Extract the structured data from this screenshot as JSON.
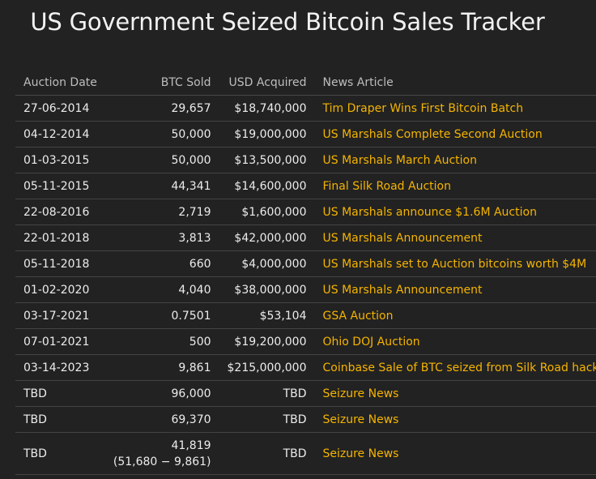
{
  "title": "US Government Seized Bitcoin Sales Tracker",
  "colors": {
    "background": "#222222",
    "link": "#f5b400",
    "text": "#ececec",
    "header_text": "#bdbdbd"
  },
  "table": {
    "headers": {
      "date": "Auction Date",
      "btc": "BTC Sold",
      "usd": "USD Acquired",
      "news": "News Article"
    },
    "rows": [
      {
        "date": "27-06-2014",
        "btc": "29,657",
        "btc_note": "",
        "usd": "$18,740,000",
        "news": "Tim Draper Wins First Bitcoin Batch"
      },
      {
        "date": "04-12-2014",
        "btc": "50,000",
        "btc_note": "",
        "usd": "$19,000,000",
        "news": "US Marshals Complete Second Auction"
      },
      {
        "date": "01-03-2015",
        "btc": "50,000",
        "btc_note": "",
        "usd": "$13,500,000",
        "news": "US Marshals March Auction"
      },
      {
        "date": "05-11-2015",
        "btc": "44,341",
        "btc_note": "",
        "usd": "$14,600,000",
        "news": "Final Silk Road Auction"
      },
      {
        "date": "22-08-2016",
        "btc": "2,719",
        "btc_note": "",
        "usd": "$1,600,000",
        "news": "US Marshals announce $1.6M Auction"
      },
      {
        "date": "22-01-2018",
        "btc": "3,813",
        "btc_note": "",
        "usd": "$42,000,000",
        "news": "US Marshals Announcement"
      },
      {
        "date": "05-11-2018",
        "btc": "660",
        "btc_note": "",
        "usd": "$4,000,000",
        "news": "US Marshals set to Auction bitcoins worth $4M"
      },
      {
        "date": "01-02-2020",
        "btc": "4,040",
        "btc_note": "",
        "usd": "$38,000,000",
        "news": "US Marshals Announcement"
      },
      {
        "date": "03-17-2021",
        "btc": "0.7501",
        "btc_note": "",
        "usd": "$53,104",
        "news": "GSA Auction"
      },
      {
        "date": "07-01-2021",
        "btc": "500",
        "btc_note": "",
        "usd": "$19,200,000",
        "news": "Ohio DOJ Auction"
      },
      {
        "date": "03-14-2023",
        "btc": "9,861",
        "btc_note": "",
        "usd": "$215,000,000",
        "news": "Coinbase Sale of BTC seized from Silk Road hacker"
      },
      {
        "date": "TBD",
        "btc": "96,000",
        "btc_note": "",
        "usd": "TBD",
        "news": "Seizure News"
      },
      {
        "date": "TBD",
        "btc": "69,370",
        "btc_note": "",
        "usd": "TBD",
        "news": "Seizure News"
      },
      {
        "date": "TBD",
        "btc": "41,819",
        "btc_note": "(51,680 − 9,861)",
        "usd": "TBD",
        "news": "Seizure News"
      }
    ]
  }
}
